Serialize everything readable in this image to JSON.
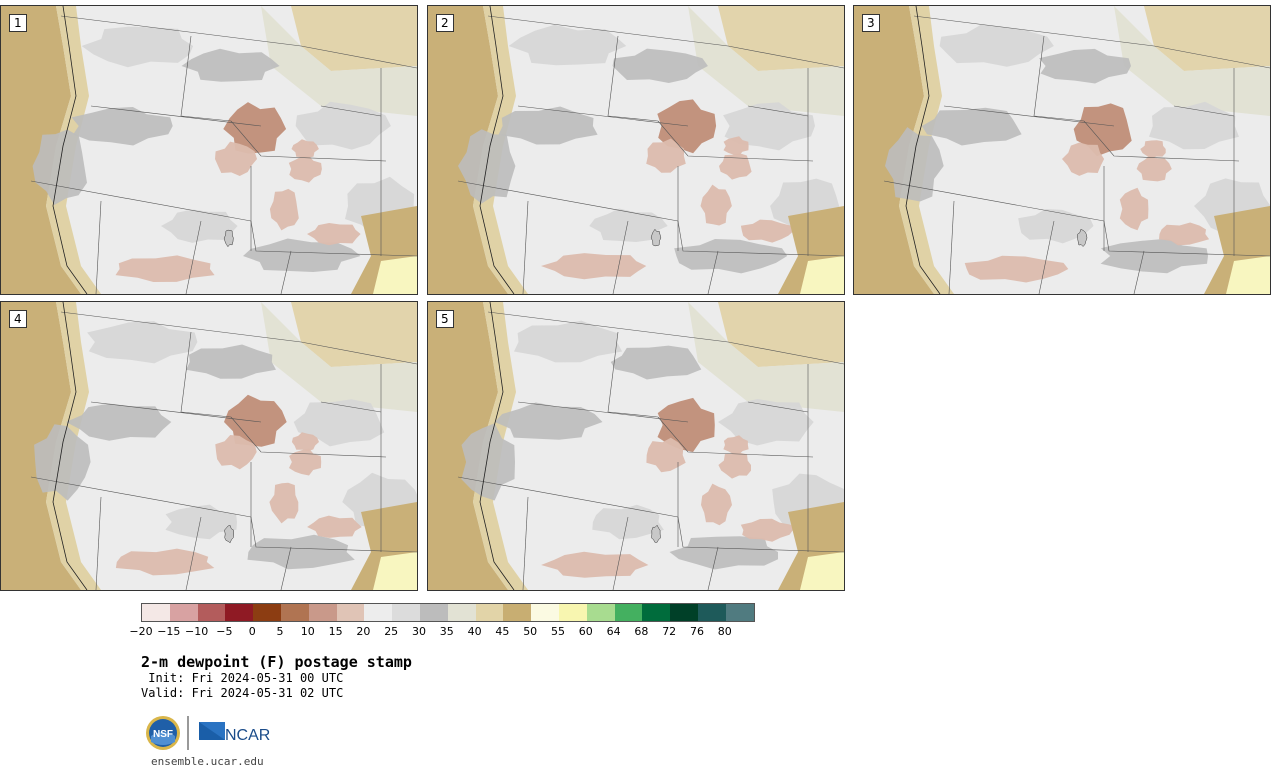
{
  "panels": [
    {
      "label": "1"
    },
    {
      "label": "2"
    },
    {
      "label": "3"
    },
    {
      "label": "4"
    },
    {
      "label": "5"
    }
  ],
  "colorbar": {
    "colors": [
      "#f4e8e6",
      "#d8a2a2",
      "#b35c5c",
      "#8f1a24",
      "#8c3d12",
      "#b07452",
      "#c9998a",
      "#e0c4b6",
      "#ededed",
      "#dcdcdc",
      "#bcbcbc",
      "#e2e2d4",
      "#e2d4a8",
      "#c8ae72",
      "#fbfae2",
      "#f8f6b0",
      "#a8dc90",
      "#44b060",
      "#006c3c",
      "#004028",
      "#1e5a5a",
      "#507b80"
    ],
    "tick_labels": [
      "−20",
      "−15",
      "−10",
      "−5",
      "0",
      "5",
      "10",
      "15",
      "20",
      "25",
      "30",
      "35",
      "40",
      "45",
      "50",
      "55",
      "60",
      "64",
      "68",
      "72",
      "76",
      "80"
    ]
  },
  "title": "2-m dewpoint (F) postage stamp",
  "init": " Init: Fri 2024-05-31 00 UTC",
  "valid": "Valid: Fri 2024-05-31 02 UTC",
  "logos": {
    "nsf": "NSF",
    "ncar": "NCAR"
  },
  "site": "ensemble.ucar.edu"
}
